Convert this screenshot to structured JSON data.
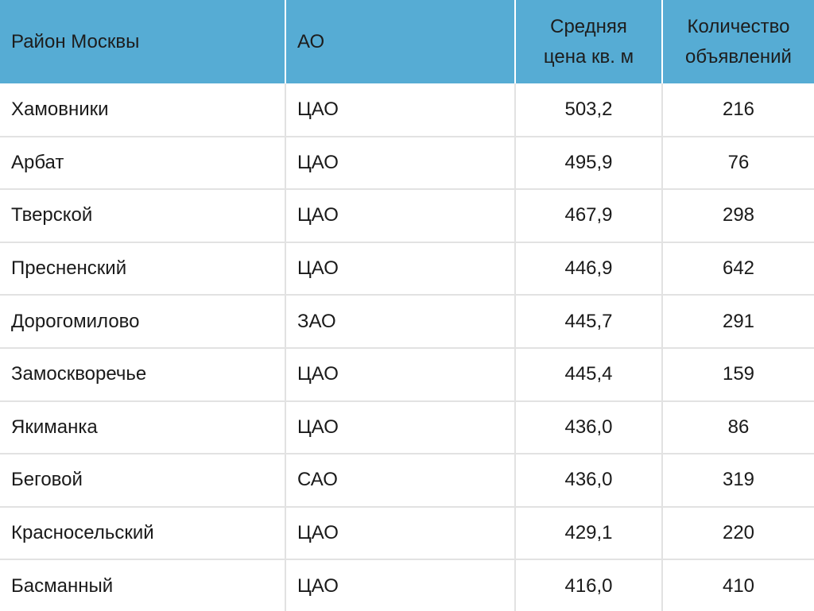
{
  "table": {
    "headers": [
      {
        "lines": [
          "Район Москвы"
        ]
      },
      {
        "lines": [
          "АО"
        ]
      },
      {
        "lines": [
          "Средняя",
          "цена кв. м"
        ]
      },
      {
        "lines": [
          "Количество",
          "объявлений"
        ]
      }
    ],
    "rows": [
      {
        "district": "Хамовники",
        "ao": "ЦАО",
        "price": "503,2",
        "count": "216"
      },
      {
        "district": "Арбат",
        "ao": "ЦАО",
        "price": "495,9",
        "count": "76"
      },
      {
        "district": "Тверской",
        "ao": "ЦАО",
        "price": "467,9",
        "count": "298"
      },
      {
        "district": "Пресненский",
        "ao": "ЦАО",
        "price": "446,9",
        "count": "642"
      },
      {
        "district": "Дорогомилово",
        "ao": "ЗАО",
        "price": "445,7",
        "count": "291"
      },
      {
        "district": "Замоскворечье",
        "ao": "ЦАО",
        "price": "445,4",
        "count": "159"
      },
      {
        "district": "Якиманка",
        "ao": "ЦАО",
        "price": "436,0",
        "count": "86"
      },
      {
        "district": "Беговой",
        "ao": "САО",
        "price": "436,0",
        "count": "319"
      },
      {
        "district": "Красносельский",
        "ao": "ЦАО",
        "price": "429,1",
        "count": "220"
      },
      {
        "district": "Басманный",
        "ao": "ЦАО",
        "price": "416,0",
        "count": "410"
      }
    ]
  },
  "colors": {
    "header_background": "#56acd4",
    "grid_line": "#e2e2e2",
    "text": "#1a1a1a"
  }
}
